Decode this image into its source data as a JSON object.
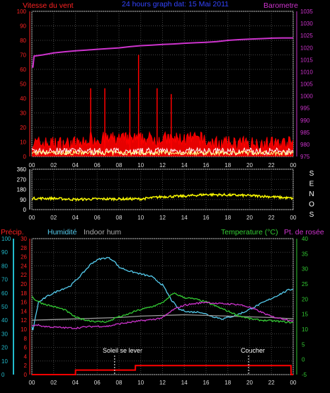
{
  "header": {
    "left_title": "Vitesse du vent",
    "center_title": "24 hours graph dat:  15 Mai 2011",
    "right_title": "Barometre"
  },
  "wind_dir": {
    "letters": [
      "S",
      "E",
      "N",
      "O",
      "S"
    ]
  },
  "lower": {
    "labels": {
      "precip": "Précip.",
      "humidity": "Humidité",
      "indoor": "Indoor hum",
      "temperature": "Temperature (°C)",
      "dewpoint": "Pt. de rosée"
    },
    "annotations": {
      "sunrise": "Soleil se lever",
      "sunset": "Coucher"
    }
  },
  "colors": {
    "wind_gust": "#ff0000",
    "wind_avg": "#ffffff",
    "wind_low": "#ffff80",
    "barometer": "#cc33cc",
    "direction": "#ffff00",
    "humidity": "#55ccee",
    "indoor": "#999999",
    "temperature": "#33cc33",
    "dewpoint": "#cc33cc",
    "precip": "#ff0000",
    "axis_red": "#ff2222",
    "axis_teal": "#22bbcc",
    "axis_green": "#33cc33"
  },
  "chart_data": [
    {
      "type": "line",
      "name": "wind-barometer",
      "x_ticks": [
        "00",
        "02",
        "04",
        "06",
        "08",
        "10",
        "12",
        "14",
        "16",
        "18",
        "20",
        "22",
        "00"
      ],
      "left_axis": {
        "label": "Vitesse du vent",
        "ticks": [
          0,
          10,
          20,
          30,
          40,
          50,
          60,
          70,
          80,
          90,
          100
        ],
        "ylim": [
          0,
          100
        ]
      },
      "right_axis": {
        "label": "Barometre",
        "ticks": [
          975,
          980,
          985,
          990,
          995,
          1000,
          1005,
          1010,
          1015,
          1020,
          1025,
          1030,
          1035
        ],
        "ylim": [
          975,
          1035
        ]
      },
      "series": [
        {
          "name": "Barometre",
          "axis": "right",
          "x": [
            0,
            0.1,
            0.2,
            1,
            2,
            3,
            4,
            5,
            6,
            7,
            8,
            9,
            10,
            11,
            12,
            13,
            14,
            15,
            16,
            17,
            18,
            19,
            20,
            21,
            22,
            23,
            24
          ],
          "values": [
            1012,
            1012,
            1016.5,
            1017,
            1017.8,
            1018.3,
            1018.7,
            1019,
            1019.3,
            1019.6,
            1019.9,
            1020.4,
            1020.8,
            1021,
            1021.3,
            1021.5,
            1021.8,
            1022,
            1022.2,
            1022.5,
            1023,
            1023.3,
            1023.5,
            1023.7,
            1023.9,
            1024,
            1024
          ],
          "color": "#cc33cc"
        }
      ],
      "peaks": [
        {
          "x": 5.4,
          "y": 47
        },
        {
          "x": 6.7,
          "y": 47
        },
        {
          "x": 9.0,
          "y": 47
        },
        {
          "x": 9.8,
          "y": 70
        },
        {
          "x": 11.5,
          "y": 47
        },
        {
          "x": 12.8,
          "y": 43
        }
      ]
    },
    {
      "type": "line",
      "name": "wind-direction",
      "x_ticks": [
        "00",
        "02",
        "04",
        "06",
        "08",
        "10",
        "12",
        "14",
        "16",
        "18",
        "20",
        "22",
        "00"
      ],
      "left_axis": {
        "ticks": [
          0,
          90,
          180,
          270,
          360
        ],
        "ylim": [
          0,
          360
        ]
      },
      "right_axis": {
        "labels": [
          "S",
          "E",
          "N",
          "O",
          "S"
        ]
      },
      "series": [
        {
          "name": "direction",
          "x": [
            0,
            2,
            4,
            6,
            8,
            10,
            12,
            14,
            16,
            18,
            20,
            22,
            24
          ],
          "values": [
            100,
            100,
            90,
            95,
            95,
            95,
            115,
            120,
            135,
            130,
            125,
            115,
            100
          ],
          "color": "#ffff00"
        }
      ]
    },
    {
      "type": "line",
      "name": "humidity-temperature",
      "x_ticks": [
        "00",
        "02",
        "04",
        "06",
        "08",
        "10",
        "12",
        "14",
        "16",
        "18",
        "20",
        "22",
        "00"
      ],
      "axes": {
        "humidity": {
          "ticks": [
            0,
            10,
            20,
            30,
            40,
            50,
            60,
            70,
            80,
            90,
            100
          ],
          "ylim": [
            0,
            100
          ]
        },
        "precip": {
          "ticks": [
            0,
            2,
            4,
            6,
            8,
            10,
            12,
            14,
            16,
            18,
            20,
            22,
            24,
            26,
            28,
            30
          ],
          "ylim": [
            0,
            30
          ]
        },
        "temperature": {
          "ticks": [
            -5,
            0,
            5,
            10,
            15,
            20,
            25,
            30,
            35,
            40
          ],
          "ylim": [
            -5,
            40
          ]
        }
      },
      "series": [
        {
          "name": "Humidité",
          "axis": "humidity",
          "x": [
            0,
            0.1,
            0.6,
            1.5,
            2.5,
            3.5,
            4.5,
            5.5,
            6.2,
            7,
            7.5,
            8,
            9,
            10,
            11,
            12,
            12.8,
            13.5,
            14.5,
            15.5,
            16.5,
            17.5,
            18.5,
            19.5,
            20.5,
            21.5,
            22.5,
            23.5,
            24
          ],
          "values": [
            35,
            33,
            53,
            58,
            62,
            65,
            73,
            82,
            85,
            86,
            84,
            79,
            76,
            74,
            72,
            66,
            55,
            48,
            46,
            46,
            43,
            41,
            43,
            46,
            50,
            54,
            58,
            62,
            63
          ],
          "color": "#55ccee"
        },
        {
          "name": "Indoor hum",
          "axis": "humidity",
          "x": [
            0,
            4,
            8,
            10,
            14,
            18,
            22,
            24
          ],
          "values": [
            40,
            41,
            42,
            43,
            44,
            43,
            42,
            41
          ],
          "color": "#999999"
        },
        {
          "name": "Temperature",
          "axis": "temperature",
          "x": [
            0,
            0.2,
            1,
            2,
            3,
            4,
            5,
            6,
            7,
            7.8,
            8.5,
            9.5,
            10.5,
            11.5,
            12.3,
            13,
            14,
            15,
            16,
            17,
            18,
            19,
            20,
            21,
            22,
            23,
            24
          ],
          "values": [
            21,
            20,
            18.5,
            17.5,
            16.5,
            14,
            13,
            12.5,
            12.5,
            14,
            14.5,
            16,
            17,
            18,
            19.5,
            22,
            20.5,
            20,
            19,
            17.5,
            16,
            14.5,
            13.5,
            13,
            12.8,
            12.5,
            12.2
          ],
          "color": "#33cc33"
        },
        {
          "name": "Pt. de rosée",
          "axis": "temperature",
          "x": [
            0,
            0.4,
            1,
            2,
            3,
            4,
            5,
            6,
            7,
            8,
            9,
            10,
            11,
            12,
            13,
            14,
            15,
            16,
            17,
            18,
            19,
            20,
            21,
            22,
            23,
            24
          ],
          "values": [
            11,
            11.5,
            11,
            10.7,
            10.5,
            10.4,
            10.8,
            11,
            11,
            11.8,
            12.3,
            12.8,
            13.2,
            13.8,
            16.5,
            18,
            18.5,
            19,
            18.5,
            18.4,
            18.2,
            17.3,
            15.8,
            14.2,
            13.5,
            12.8
          ],
          "color": "#cc33cc"
        },
        {
          "name": "Précip.",
          "axis": "precip",
          "x": [
            0,
            4,
            4.01,
            9.5,
            9.51,
            23.8,
            23.81,
            24
          ],
          "values": [
            0,
            0,
            1,
            1,
            2,
            2,
            0,
            0
          ],
          "color": "#ff0000"
        }
      ],
      "markers": [
        {
          "label": "Soleil se lever",
          "x": 7.6
        },
        {
          "label": "Coucher",
          "x": 19.9
        }
      ]
    }
  ]
}
